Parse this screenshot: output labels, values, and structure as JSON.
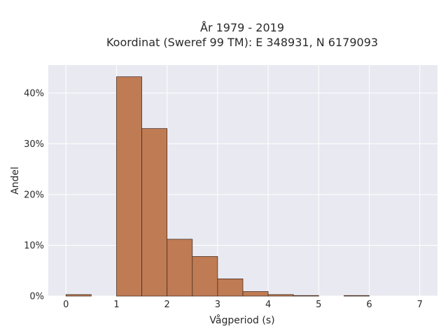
{
  "chart_data": {
    "type": "bar",
    "title": "År 1979 - 2019",
    "subtitle": "Koordinat (Sweref 99 TM): E 348931, N 6179093",
    "xlabel": "Vågperiod (s)",
    "ylabel": "Andel",
    "xlim": [
      -0.35,
      7.35
    ],
    "ylim": [
      0,
      45.5
    ],
    "x_ticks": [
      0,
      1,
      2,
      3,
      4,
      5,
      6,
      7
    ],
    "y_ticks": [
      0,
      10,
      20,
      30,
      40
    ],
    "y_tick_labels": [
      "0%",
      "10%",
      "20%",
      "30%",
      "40%"
    ],
    "grid": true,
    "bin_width": 0.5,
    "bins": [
      {
        "x0": 0.0,
        "x1": 0.5,
        "value": 0.3
      },
      {
        "x0": 0.5,
        "x1": 1.0,
        "value": 0.0
      },
      {
        "x0": 1.0,
        "x1": 1.5,
        "value": 43.2
      },
      {
        "x0": 1.5,
        "x1": 2.0,
        "value": 33.0
      },
      {
        "x0": 2.0,
        "x1": 2.5,
        "value": 11.2
      },
      {
        "x0": 2.5,
        "x1": 3.0,
        "value": 7.8
      },
      {
        "x0": 3.0,
        "x1": 3.5,
        "value": 3.4
      },
      {
        "x0": 3.5,
        "x1": 4.0,
        "value": 0.9
      },
      {
        "x0": 4.0,
        "x1": 4.5,
        "value": 0.3
      },
      {
        "x0": 4.5,
        "x1": 5.0,
        "value": 0.05
      },
      {
        "x0": 5.0,
        "x1": 5.5,
        "value": 0.0
      },
      {
        "x0": 5.5,
        "x1": 6.0,
        "value": 0.05
      }
    ],
    "colors": {
      "bar_fill": "#bf7b54",
      "bar_stroke": "#3a2418",
      "plot_background": "#e9e9f1",
      "grid": "#ffffff"
    }
  }
}
